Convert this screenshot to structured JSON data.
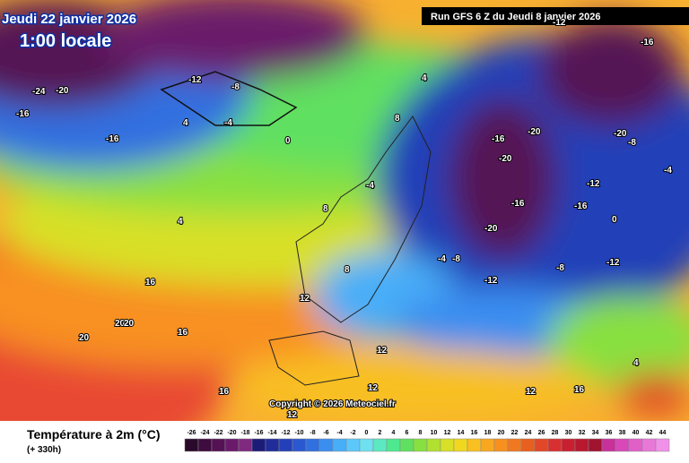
{
  "header": {
    "date": "Jeudi 22 janvier 2026",
    "time": "1:00 locale",
    "run": "Run GFS 6 Z du Jeudi 8 janvier 2026"
  },
  "footer": {
    "title": "Température à 2m (°C)",
    "lead": "(+ 330h)",
    "copyright": "Copyright © 2026 Meteociel.fr"
  },
  "scale": {
    "values": [
      -26,
      -24,
      -22,
      -20,
      -18,
      -16,
      -14,
      -12,
      -10,
      -8,
      -6,
      -4,
      -2,
      0,
      2,
      4,
      6,
      8,
      10,
      12,
      14,
      16,
      18,
      20,
      22,
      24,
      26,
      28,
      30,
      32,
      34,
      36,
      38,
      40,
      42,
      44
    ],
    "colors": [
      "#2a0a2a",
      "#3e0c3e",
      "#541254",
      "#6b1a6b",
      "#7f2a7f",
      "#1c1c78",
      "#202c9a",
      "#2440b8",
      "#2a58d0",
      "#3070e0",
      "#3a8ef0",
      "#48aef8",
      "#5cc8fa",
      "#6ee0f0",
      "#5ce8c0",
      "#4ee890",
      "#60e060",
      "#88e040",
      "#b0e030",
      "#d8e028",
      "#f0d820",
      "#f8c020",
      "#f8a820",
      "#f89020",
      "#f07820",
      "#e86020",
      "#e04828",
      "#d83030",
      "#c82030",
      "#b81830",
      "#a01430",
      "#c8309a",
      "#d848b8",
      "#e060c8",
      "#e878d8",
      "#f090e8"
    ]
  },
  "map_labels": [
    -16,
    -24,
    -20,
    -16,
    -12,
    -8,
    -4,
    0,
    4,
    4,
    8,
    8,
    12,
    12,
    16,
    16,
    20,
    20,
    20,
    16,
    12,
    12,
    -4,
    -8,
    -12,
    -16,
    -20,
    -20,
    -16,
    -12,
    -8,
    -4,
    -12,
    -16,
    -20,
    -4,
    4,
    8,
    12,
    16,
    -8,
    -12,
    0,
    4,
    -20,
    -16
  ]
}
